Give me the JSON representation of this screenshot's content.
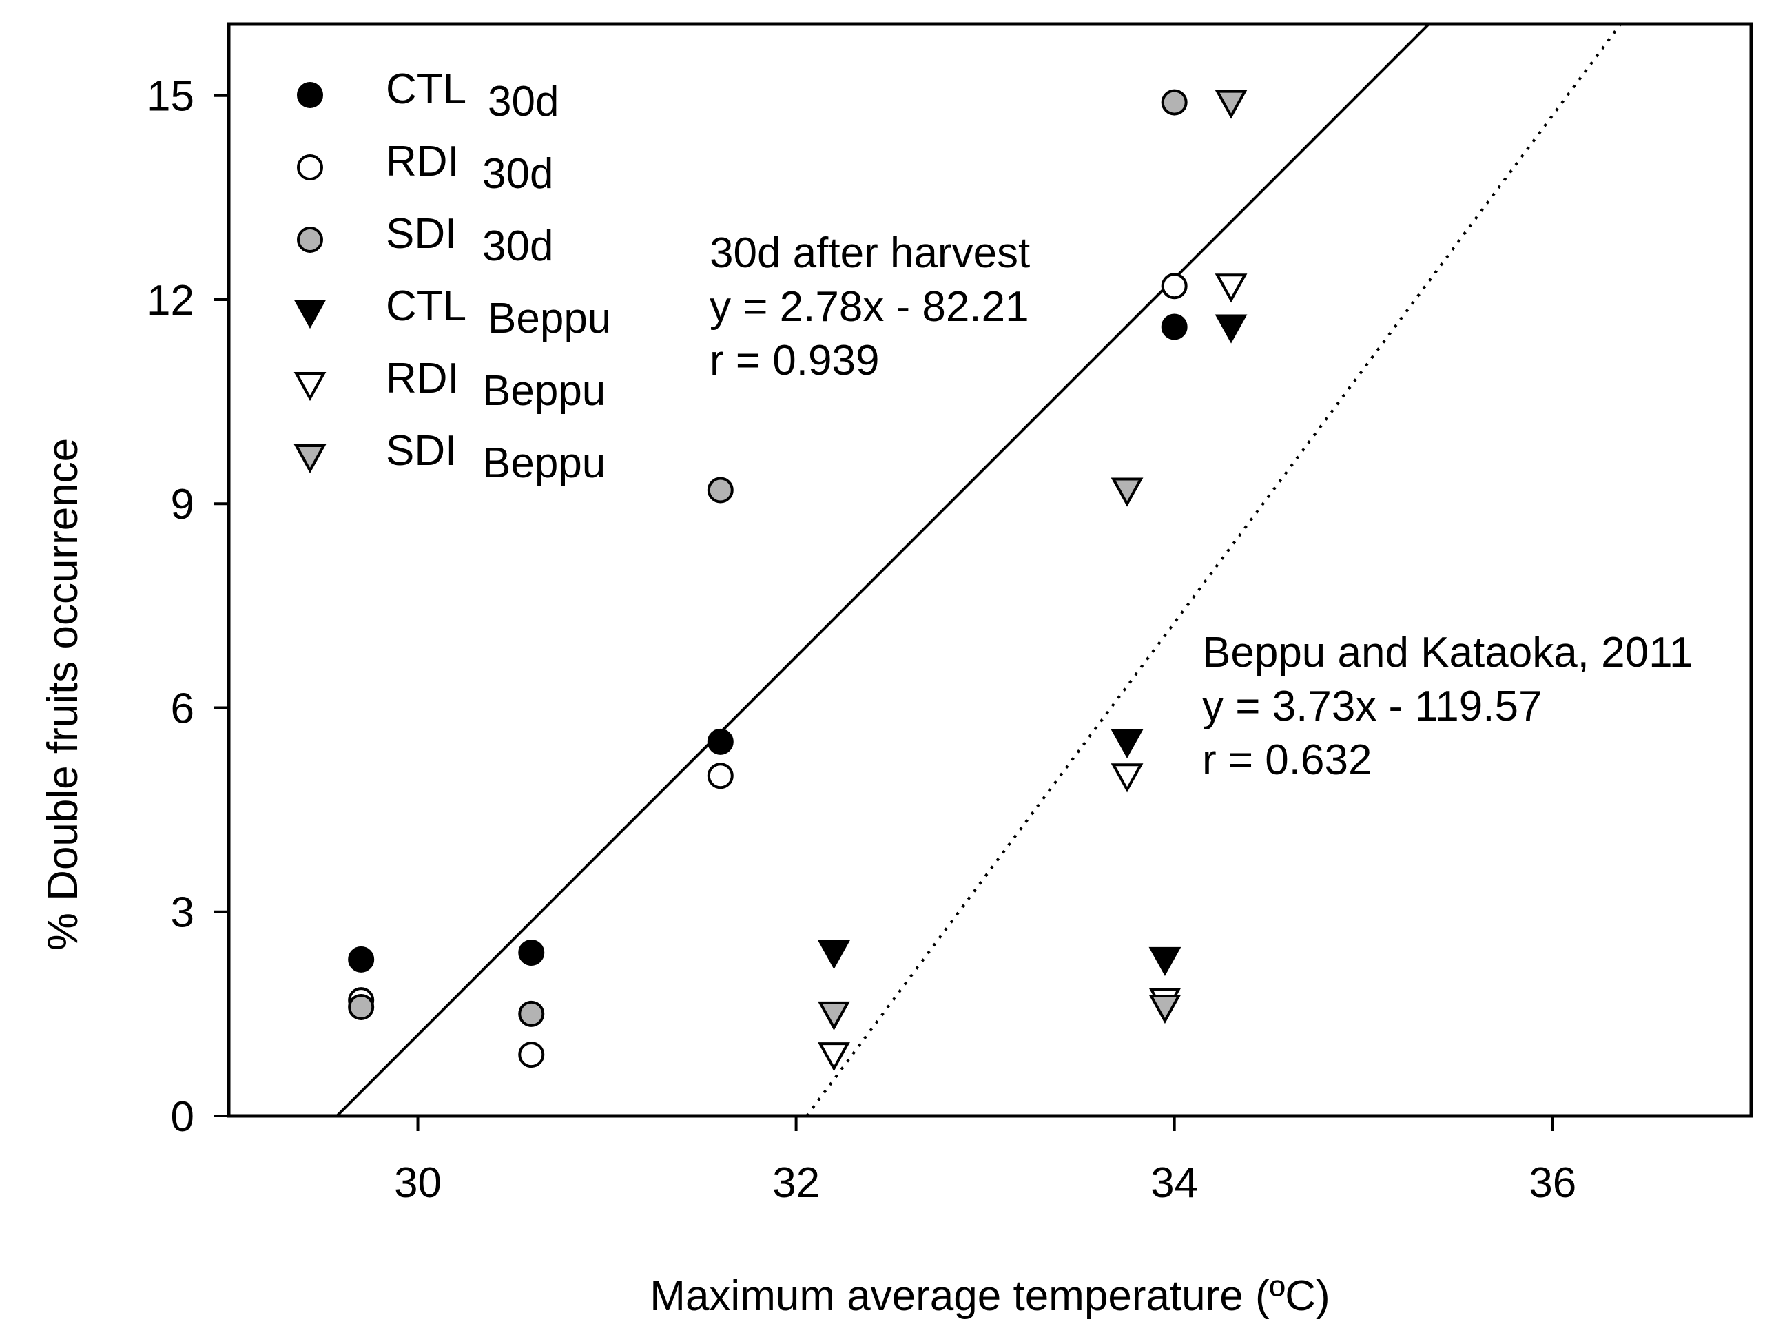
{
  "chart_data": {
    "type": "scatter",
    "xlabel": "Maximum average temperature (ºC)",
    "ylabel": "% Double fruits occurrence",
    "xlim": [
      29,
      37.05
    ],
    "ylim": [
      0,
      16.05
    ],
    "x_ticks": [
      30,
      32,
      34,
      36
    ],
    "x_tick_labels": [
      "30",
      "32",
      "34",
      "36"
    ],
    "y_ticks": [
      0,
      3,
      6,
      9,
      12,
      15
    ],
    "y_tick_labels": [
      "0",
      "3",
      "6",
      "9",
      "12",
      "15"
    ],
    "legend_position": "top-left",
    "series": [
      {
        "name": "CTL",
        "subscript": "30d",
        "marker": "circle",
        "fill": "#000000",
        "points": [
          [
            29.7,
            2.3
          ],
          [
            30.6,
            2.4
          ],
          [
            31.6,
            5.5
          ],
          [
            34.0,
            11.6
          ]
        ]
      },
      {
        "name": "RDI",
        "subscript": "30d",
        "marker": "circle",
        "fill": "#ffffff",
        "points": [
          [
            29.7,
            1.7
          ],
          [
            30.6,
            0.9
          ],
          [
            31.6,
            5.0
          ],
          [
            34.0,
            12.2
          ]
        ]
      },
      {
        "name": "SDI",
        "subscript": "30d",
        "marker": "circle",
        "fill": "#b3b3b3",
        "points": [
          [
            29.7,
            1.6
          ],
          [
            30.6,
            1.5
          ],
          [
            31.6,
            9.2
          ],
          [
            34.0,
            14.9
          ]
        ]
      },
      {
        "name": "CTL",
        "subscript": "Beppu",
        "marker": "triangle-down",
        "fill": "#000000",
        "points": [
          [
            32.2,
            2.4
          ],
          [
            33.75,
            5.5
          ],
          [
            33.95,
            2.3
          ],
          [
            34.3,
            11.6
          ]
        ]
      },
      {
        "name": "RDI",
        "subscript": "Beppu",
        "marker": "triangle-down",
        "fill": "#ffffff",
        "points": [
          [
            32.2,
            0.9
          ],
          [
            33.75,
            5.0
          ],
          [
            33.95,
            1.7
          ],
          [
            34.3,
            12.2
          ]
        ]
      },
      {
        "name": "SDI",
        "subscript": "Beppu",
        "marker": "triangle-down",
        "fill": "#b3b3b3",
        "points": [
          [
            32.2,
            1.5
          ],
          [
            33.75,
            9.2
          ],
          [
            33.95,
            1.6
          ],
          [
            34.3,
            14.9
          ]
        ]
      }
    ],
    "regressions": [
      {
        "name": "30d-fit",
        "style": "solid",
        "slope": 2.78,
        "intercept": -82.21
      },
      {
        "name": "beppu-fit",
        "style": "dotted",
        "slope": 3.73,
        "intercept": -119.57
      }
    ],
    "annotations": [
      {
        "name": "annot-30d",
        "lines": [
          "30d after harvest",
          "y = 2.78x - 82.21",
          "r = 0.939"
        ]
      },
      {
        "name": "annot-beppu",
        "lines": [
          "Beppu and Kataoka, 2011",
          "y = 3.73x - 119.57",
          "r = 0.632"
        ]
      }
    ]
  }
}
